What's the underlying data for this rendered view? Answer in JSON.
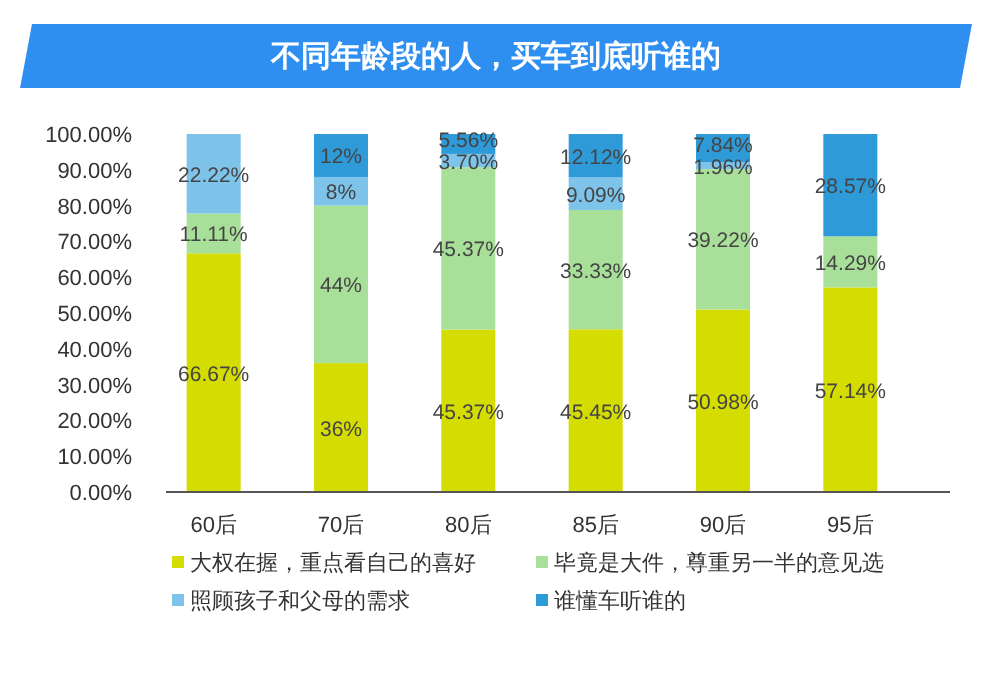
{
  "chart_data": {
    "type": "bar",
    "stacked": true,
    "title": "不同年龄段的人，买车到底听谁的",
    "categories": [
      "60后",
      "70后",
      "80后",
      "85后",
      "90后",
      "95后"
    ],
    "series": [
      {
        "name": "大权在握，重点看自己的喜好",
        "color": "#d4dc00",
        "values": [
          66.67,
          36,
          45.37,
          45.45,
          50.98,
          57.14
        ],
        "value_labels": [
          "66.67%",
          "36%",
          "45.37%",
          "45.45%",
          "50.98%",
          "57.14%"
        ]
      },
      {
        "name": "毕竟是大件，尊重另一半的意见选",
        "color": "#a8e09a",
        "values": [
          11.11,
          44,
          45.37,
          33.33,
          39.22,
          14.29
        ],
        "value_labels": [
          "11.11%",
          "44%",
          "45.37%",
          "33.33%",
          "39.22%",
          "14.29%"
        ]
      },
      {
        "name": "照顾孩子和父母的需求",
        "color": "#7ec4ea",
        "values": [
          22.22,
          8,
          3.7,
          9.09,
          1.96,
          0
        ],
        "value_labels": [
          "22.22%",
          "8%",
          "3.70%",
          "9.09%",
          "1.96%",
          null
        ]
      },
      {
        "name": "谁懂车听谁的",
        "color": "#2e9ad8",
        "values": [
          0,
          12,
          5.56,
          12.12,
          7.84,
          28.57
        ],
        "value_labels": [
          null,
          "12%",
          "5.56%",
          "12.12%",
          "7.84%",
          "28.57%"
        ]
      }
    ],
    "ylim": [
      0,
      100
    ],
    "yticks": [
      {
        "value": 0,
        "label": "0.00%"
      },
      {
        "value": 10,
        "label": "10.00%"
      },
      {
        "value": 20,
        "label": "20.00%"
      },
      {
        "value": 30,
        "label": "30.00%"
      },
      {
        "value": 40,
        "label": "40.00%"
      },
      {
        "value": 50,
        "label": "50.00%"
      },
      {
        "value": 60,
        "label": "60.00%"
      },
      {
        "value": 70,
        "label": "70.00%"
      },
      {
        "value": 80,
        "label": "80.00%"
      },
      {
        "value": 90,
        "label": "90.00%"
      },
      {
        "value": 100,
        "label": "100.00%"
      }
    ],
    "grid": false,
    "legend": "bottom"
  }
}
